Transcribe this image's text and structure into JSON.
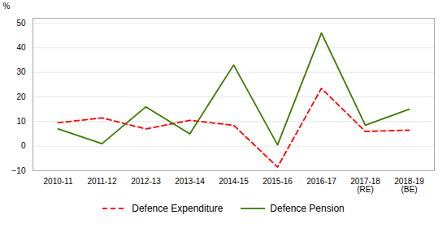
{
  "chart_data": {
    "type": "line",
    "categories": [
      "2010-11",
      "2011-12",
      "2012-13",
      "2013-14",
      "2014-15",
      "2015-16",
      "2016-17",
      "2017-18\n(RE)",
      "2018-19\n(BE)"
    ],
    "series": [
      {
        "name": "Defence Expenditure",
        "color": "#ff0000",
        "line_style": "dashed",
        "values": [
          9.5,
          11.5,
          7.0,
          10.5,
          8.5,
          -8.5,
          23.5,
          6.0,
          6.5
        ]
      },
      {
        "name": "Defence Pension",
        "color": "#3c7a00",
        "line_style": "solid",
        "values": [
          7.0,
          1.0,
          16.0,
          5.0,
          33.0,
          0.5,
          46.0,
          8.5,
          15.0
        ]
      }
    ],
    "ylabel": "%",
    "ylim": [
      -10,
      52
    ],
    "yticks": [
      -10,
      0,
      10,
      20,
      30,
      40,
      50
    ],
    "grid": true,
    "legend": "bottom"
  }
}
